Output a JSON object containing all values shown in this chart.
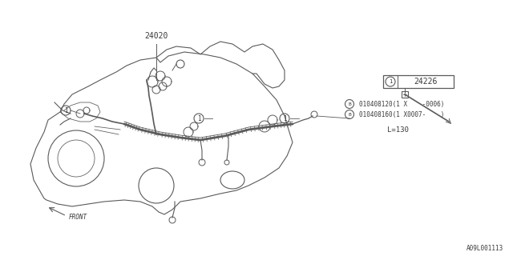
{
  "bg_color": "#ffffff",
  "line_color": "#5a5a5a",
  "text_color": "#3a3a3a",
  "title_label": "24020",
  "part_label": "24226",
  "length_label": "L=130",
  "ref_b_line1": "010408120(1 X    -0006)",
  "ref_b_line2": "010408160(1 X0007-    )",
  "front_label": "FRONT",
  "part_num_footer": "A09L001113",
  "figsize": [
    6.4,
    3.2
  ],
  "dpi": 100
}
